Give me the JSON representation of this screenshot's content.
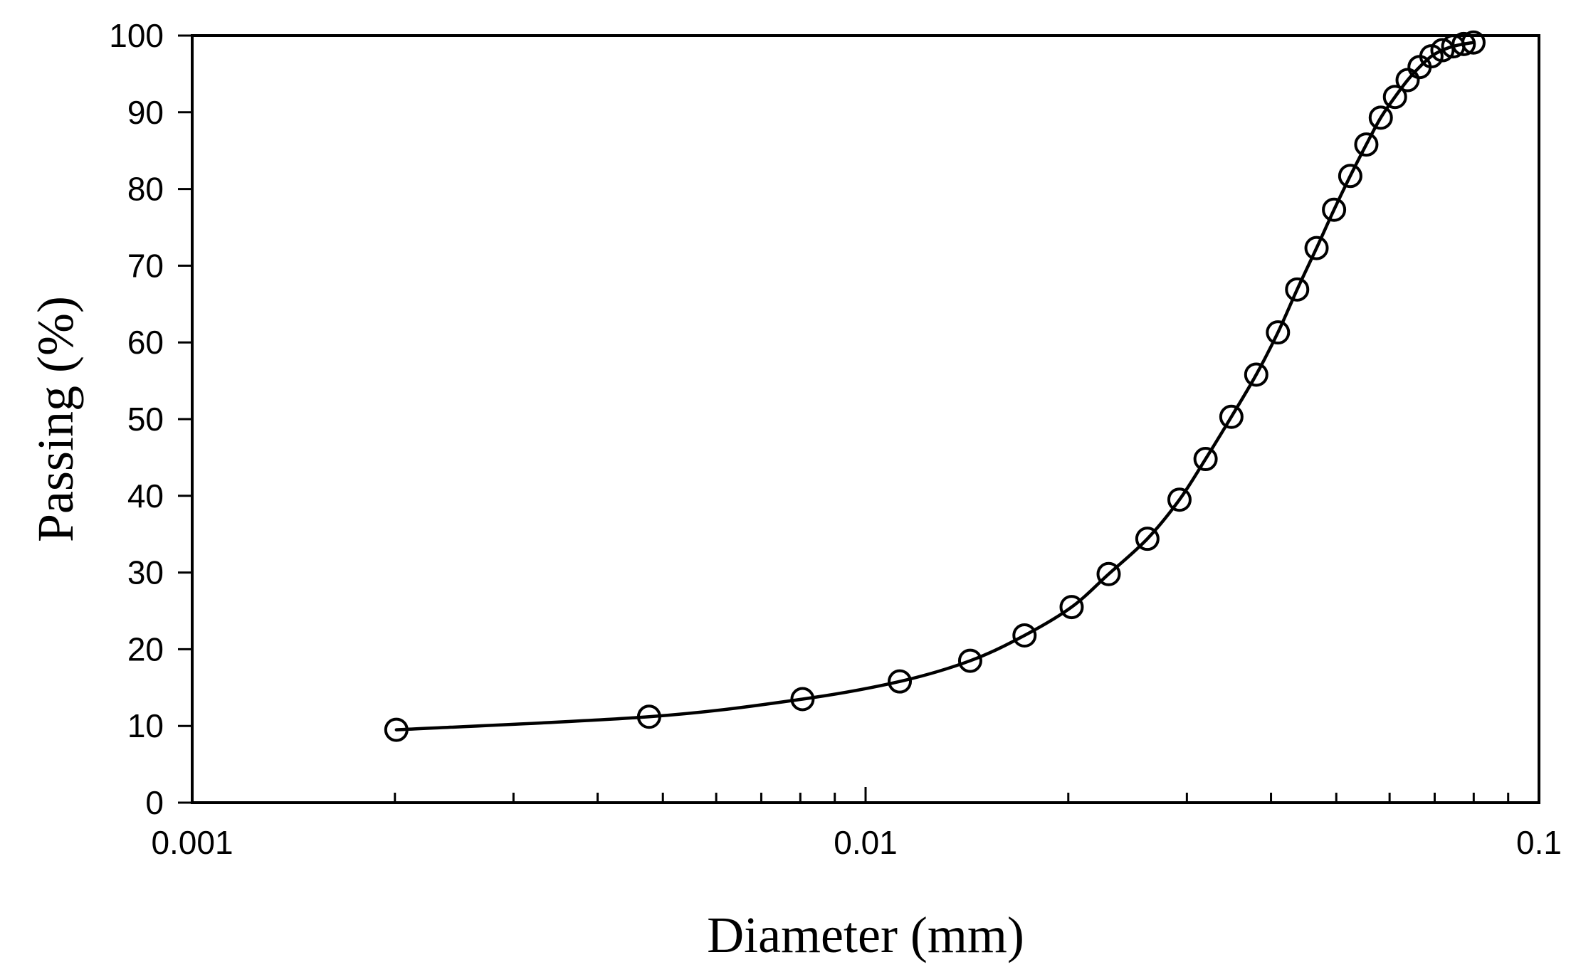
{
  "chart_data": {
    "type": "scatter",
    "xlabel": "Diameter (mm)",
    "ylabel": "Passing (%)",
    "x_scale": "log",
    "xlim": [
      0.001,
      0.1
    ],
    "ylim": [
      0,
      100
    ],
    "x_ticks": [
      0.001,
      0.01,
      0.1
    ],
    "x_tick_labels": [
      "0.001",
      "0.01",
      "0.1"
    ],
    "y_ticks": [
      0,
      10,
      20,
      30,
      40,
      50,
      60,
      70,
      80,
      90,
      100
    ],
    "y_tick_labels": [
      "0",
      "10",
      "20",
      "30",
      "40",
      "50",
      "60",
      "70",
      "80",
      "90",
      "100"
    ],
    "grid": false,
    "legend": "none",
    "marker": "open-circle",
    "line": "smooth",
    "color": "#000000",
    "series": [
      {
        "x": [
          0.00201,
          0.00477,
          0.00806,
          0.01124,
          0.0143,
          0.01722,
          0.02023,
          0.02296,
          0.02621,
          0.02925,
          0.03198,
          0.03493,
          0.03803,
          0.04096,
          0.04374,
          0.04674,
          0.04962,
          0.05245,
          0.05541,
          0.05822,
          0.06112,
          0.06382,
          0.06648,
          0.06922,
          0.07189,
          0.07458,
          0.07731,
          0.07993
        ],
        "y": [
          9.5,
          11.2,
          13.5,
          15.8,
          18.5,
          21.8,
          25.5,
          29.8,
          34.4,
          39.5,
          44.8,
          50.3,
          55.8,
          61.3,
          66.9,
          72.3,
          77.3,
          81.7,
          85.8,
          89.3,
          92.0,
          94.2,
          95.9,
          97.3,
          98.1,
          98.6,
          98.9,
          99.1
        ]
      }
    ]
  }
}
